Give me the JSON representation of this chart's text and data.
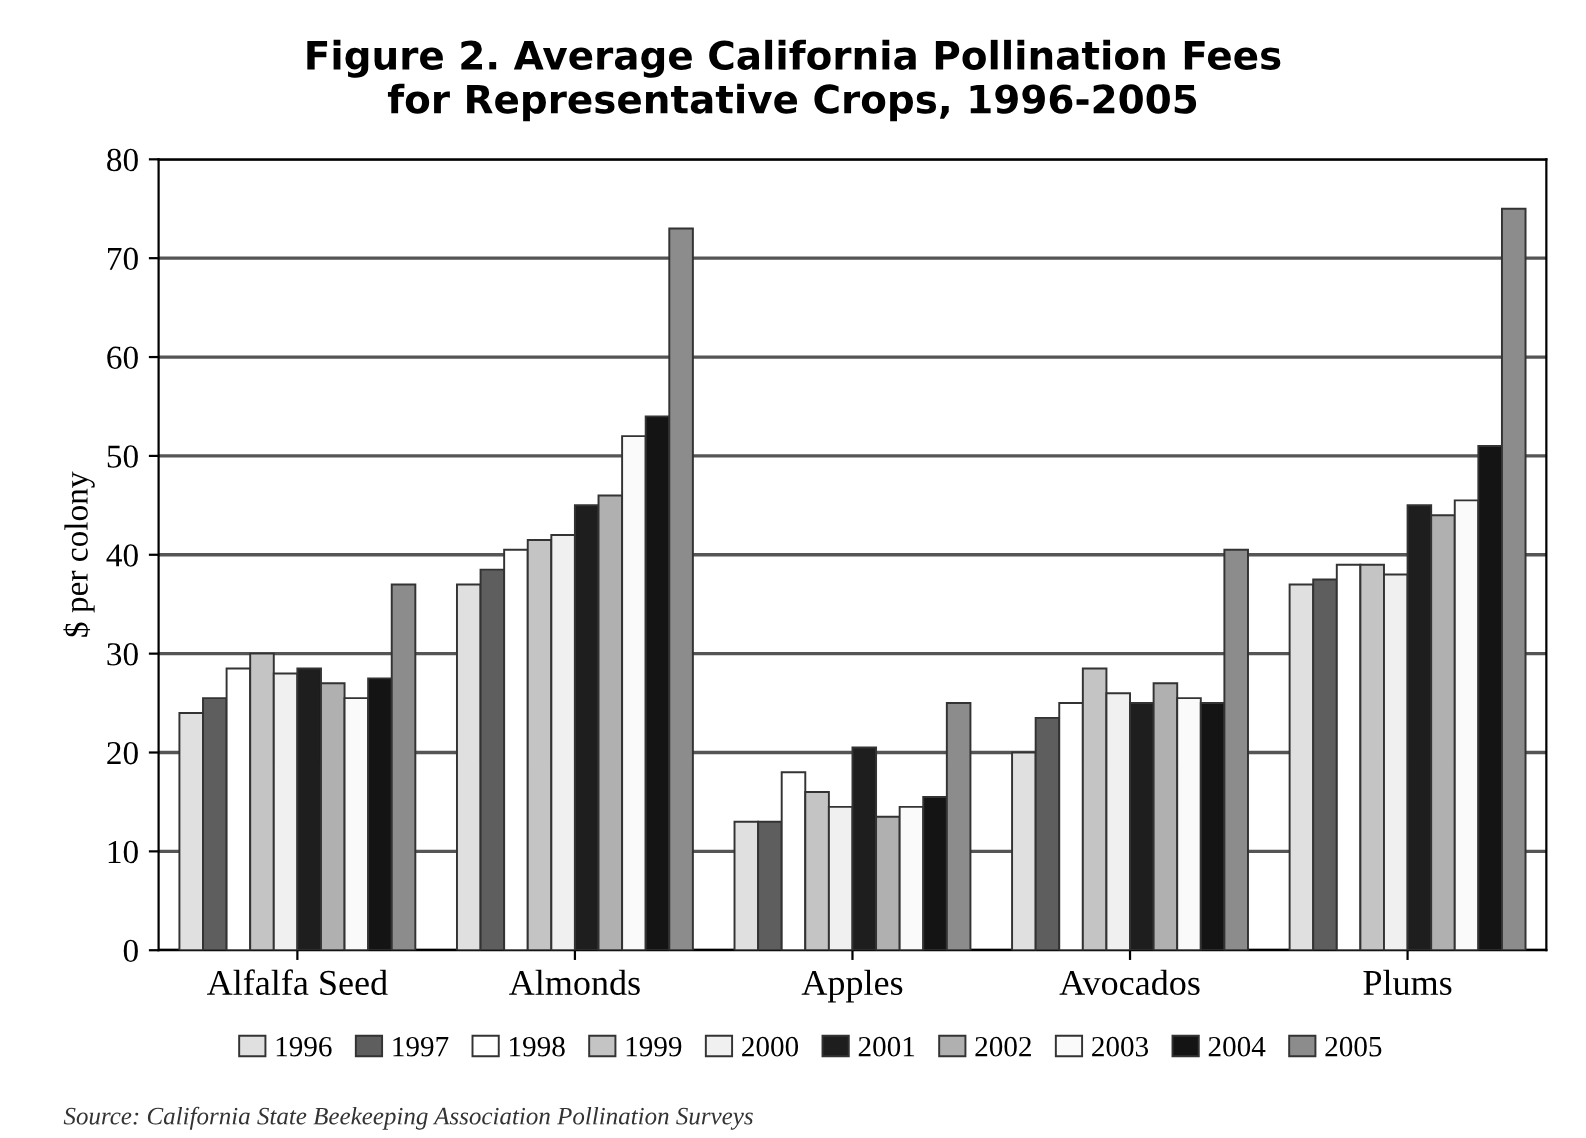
{
  "chart_data": {
    "type": "bar",
    "title": "Figure 2. Average California Pollination Fees\nfor Representative Crops, 1996-2005",
    "ylabel": "$ per colony",
    "categories": [
      "Alfalfa Seed",
      "Almonds",
      "Apples",
      "Avocados",
      "Plums"
    ],
    "series": [
      {
        "name": "1996",
        "color": "#e0e0e0",
        "values": [
          24,
          37,
          13,
          20,
          37
        ]
      },
      {
        "name": "1997",
        "color": "#5e5e5e",
        "values": [
          25.5,
          38.5,
          13,
          23.5,
          37.5
        ]
      },
      {
        "name": "1998",
        "color": "#ffffff",
        "values": [
          28.5,
          40.5,
          18,
          25,
          39
        ]
      },
      {
        "name": "1999",
        "color": "#c4c4c4",
        "values": [
          30,
          41.5,
          16,
          28.5,
          39
        ]
      },
      {
        "name": "2000",
        "color": "#f0f0f0",
        "values": [
          28,
          42,
          14.5,
          26,
          38
        ]
      },
      {
        "name": "2001",
        "color": "#1e1e1e",
        "values": [
          28.5,
          45,
          20.5,
          25,
          45
        ]
      },
      {
        "name": "2002",
        "color": "#b0b0b0",
        "values": [
          27,
          46,
          13.5,
          27,
          44
        ]
      },
      {
        "name": "2003",
        "color": "#fafafa",
        "values": [
          25.5,
          52,
          14.5,
          25.5,
          45.5
        ]
      },
      {
        "name": "2004",
        "color": "#141414",
        "values": [
          27.5,
          54,
          15.5,
          25,
          51
        ]
      },
      {
        "name": "2005",
        "color": "#8c8c8c",
        "values": [
          37,
          73,
          25,
          40.5,
          75
        ]
      }
    ],
    "ylim": [
      0,
      80
    ],
    "yticks": [
      0,
      10,
      20,
      30,
      40,
      50,
      60,
      70,
      80
    ],
    "grid": "y",
    "legend": "bottom",
    "annotations": [
      "Source: California State Beekeeping Association Pollination Surveys"
    ]
  }
}
